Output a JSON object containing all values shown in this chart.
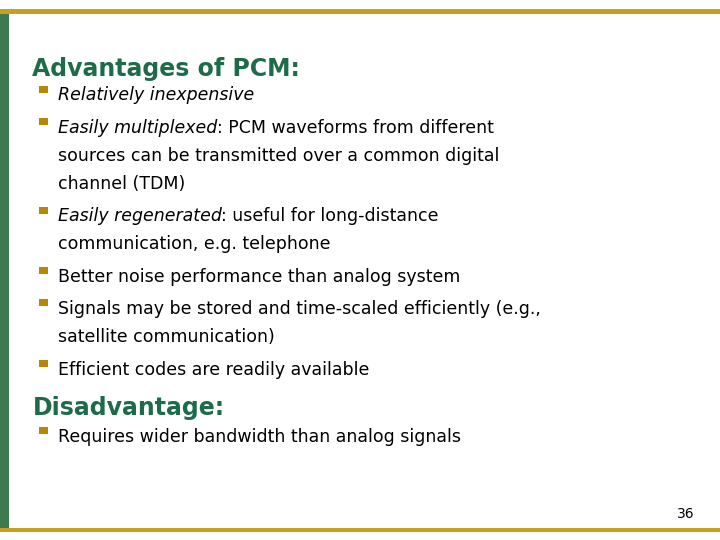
{
  "bg_color": "#ffffff",
  "title": "Advantages of PCM:",
  "title_color": "#1e6b4a",
  "title_fontsize": 17,
  "bullet_color": "#b8860b",
  "section2_title": "Disadvantage:",
  "section2_color": "#1e6b4a",
  "page_number": "36",
  "text_color": "#000000",
  "text_fontsize": 12.5,
  "left_bar_color": "#3d7a50",
  "top_bar_color": "#c8a020",
  "bottom_bar_color": "#c8a020",
  "items": [
    {
      "lines": [
        [
          {
            "text": "Relatively inexpensive",
            "style": "italic"
          }
        ]
      ]
    },
    {
      "lines": [
        [
          {
            "text": "Easily multiplexed",
            "style": "italic"
          },
          {
            "text": ": PCM waveforms from different",
            "style": "normal"
          }
        ],
        [
          {
            "text": "sources can be transmitted over a common digital",
            "style": "normal"
          }
        ],
        [
          {
            "text": "channel (TDM)",
            "style": "normal"
          }
        ]
      ]
    },
    {
      "lines": [
        [
          {
            "text": "Easily regenerated",
            "style": "italic"
          },
          {
            "text": ": useful for long-distance",
            "style": "normal"
          }
        ],
        [
          {
            "text": "communication, e.g. telephone",
            "style": "normal"
          }
        ]
      ]
    },
    {
      "lines": [
        [
          {
            "text": "Better noise performance than analog system",
            "style": "normal"
          }
        ]
      ]
    },
    {
      "lines": [
        [
          {
            "text": "Signals may be stored and time-scaled efficiently (e.g.,",
            "style": "normal"
          }
        ],
        [
          {
            "text": "satellite communication)",
            "style": "normal"
          }
        ]
      ]
    },
    {
      "lines": [
        [
          {
            "text": "Efficient codes are readily available",
            "style": "normal"
          }
        ]
      ]
    }
  ],
  "section2_items": [
    {
      "lines": [
        [
          {
            "text": "Requires wider bandwidth than analog signals",
            "style": "normal"
          }
        ]
      ]
    }
  ]
}
